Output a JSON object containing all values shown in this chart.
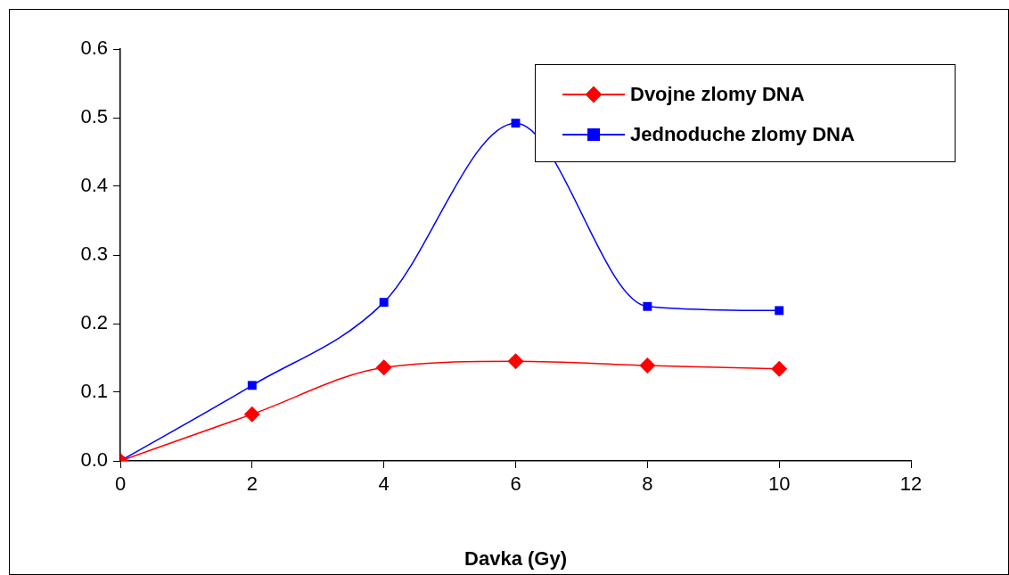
{
  "chart_data": {
    "type": "line",
    "xlabel": "Davka (Gy)",
    "x": [
      0,
      2,
      4,
      6,
      8,
      10
    ],
    "xlim": [
      0,
      12
    ],
    "xticks": [
      0,
      2,
      4,
      6,
      8,
      10,
      12
    ],
    "ylim": [
      0,
      0.6
    ],
    "yticks": [
      {
        "value": 0,
        "label": "0.0"
      },
      0.1,
      0.2,
      0.3,
      0.4,
      0.5,
      0.6
    ],
    "grid": false,
    "legend": "top right",
    "series": [
      {
        "name": "Dvojne zlomy DNA",
        "color": "#ff0000",
        "marker": "diamond",
        "values": [
          0,
          0.068,
          0.136,
          0.145,
          0.139,
          0.134
        ]
      },
      {
        "name": "Jednoduche zlomy DNA",
        "color": "#0000ff",
        "marker": "square",
        "values": [
          0,
          0.11,
          0.231,
          0.492,
          0.225,
          0.219
        ]
      }
    ]
  }
}
